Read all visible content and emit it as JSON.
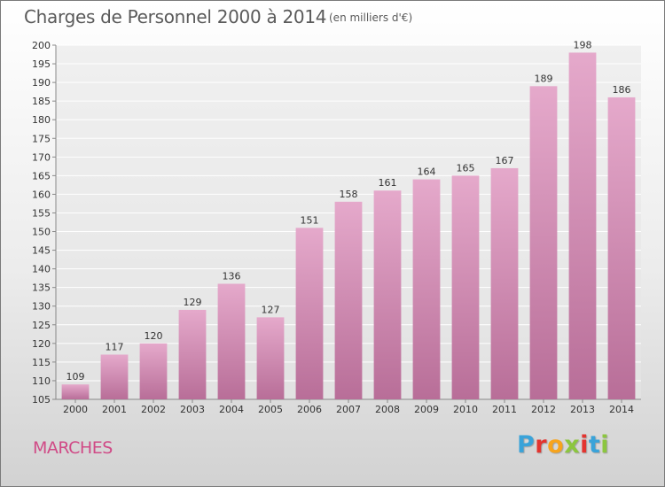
{
  "title": "Charges de Personnel 2000 à 2014",
  "subtitle": "(en milliers d'€)",
  "commune": "MARCHES",
  "brand": {
    "name": "Proxiti",
    "colors": [
      "#3aa3d9",
      "#e3342f",
      "#f7a41d",
      "#8cc63f",
      "#e3342f",
      "#3aa3d9",
      "#8cc63f"
    ]
  },
  "colors": {
    "bar_top": "#e5a9cb",
    "bar_bottom": "#b86e98",
    "commune": "#d04a86"
  },
  "chart_data": {
    "type": "bar",
    "title": "Charges de Personnel 2000 à 2014",
    "xlabel": "",
    "ylabel": "(en milliers d'€)",
    "categories": [
      "2000",
      "2001",
      "2002",
      "2003",
      "2004",
      "2005",
      "2006",
      "2007",
      "2008",
      "2009",
      "2010",
      "2011",
      "2012",
      "2013",
      "2014"
    ],
    "values": [
      109,
      117,
      120,
      129,
      136,
      127,
      151,
      158,
      161,
      164,
      165,
      167,
      189,
      198,
      186
    ],
    "ylim": [
      105,
      200
    ],
    "yticks": [
      105,
      110,
      115,
      120,
      125,
      130,
      135,
      140,
      145,
      150,
      155,
      160,
      165,
      170,
      175,
      180,
      185,
      190,
      195,
      200
    ],
    "grid": true
  }
}
